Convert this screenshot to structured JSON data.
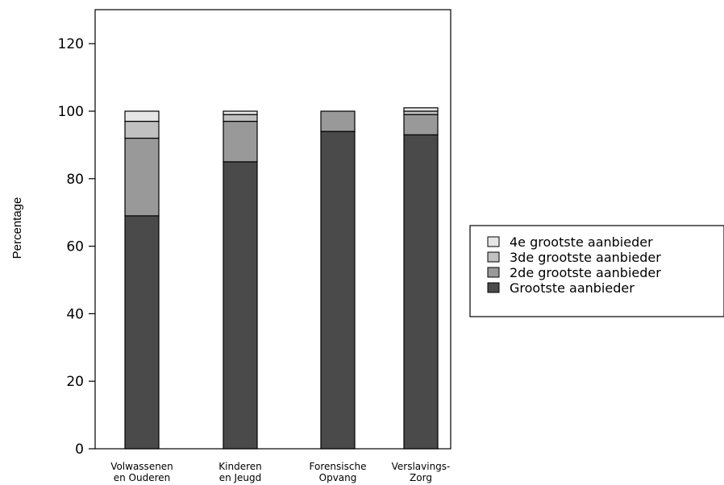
{
  "chart_data": {
    "type": "bar",
    "stacked": true,
    "title": "",
    "xlabel": "",
    "ylabel": "Percentage",
    "ylim": [
      0,
      130
    ],
    "yticks": [
      "0",
      "20",
      "40",
      "60",
      "80",
      "100",
      "120"
    ],
    "categories": [
      [
        "Volwassenen",
        "en Ouderen"
      ],
      [
        "Kinderen",
        "en Jeugd"
      ],
      [
        "Forensische",
        "Opvang"
      ],
      [
        "Verslavings-",
        "Zorg"
      ]
    ],
    "series": [
      {
        "name": "Grootste aanbieder",
        "color": "#4a4a4a",
        "values": [
          69,
          85,
          94,
          93
        ]
      },
      {
        "name": "2de grootste aanbieder",
        "color": "#999999",
        "values": [
          23,
          12,
          6,
          6
        ]
      },
      {
        "name": "3de grootste aanbieder",
        "color": "#c0c0c0",
        "values": [
          5,
          2,
          0,
          1
        ]
      },
      {
        "name": "4e grootste aanbieder",
        "color": "#e6e6e6",
        "values": [
          3,
          1,
          0,
          1
        ]
      }
    ],
    "legend": {
      "position": "right",
      "order": [
        "4e grootste aanbieder",
        "3de grootste aanbieder",
        "2de grootste aanbieder",
        "Grootste aanbieder"
      ]
    },
    "grid": false
  }
}
